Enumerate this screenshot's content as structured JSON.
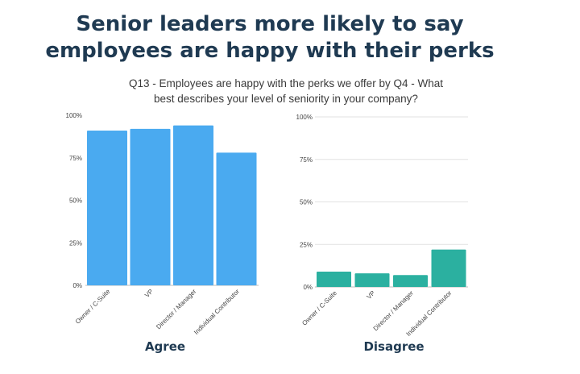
{
  "title_line1": "Senior leaders more likely to say",
  "title_line2": "employees are happy with their perks",
  "subtitle_line1": "Q13 - Employees are happy with the perks we offer by Q4 - What",
  "subtitle_line2": "best describes your level of seniority in your company?",
  "chart_data": [
    {
      "type": "bar",
      "title": "Agree",
      "categories": [
        "Owner / C-Suite",
        "VP",
        "Director / Manager",
        "Individual Contributor"
      ],
      "values": [
        91,
        92,
        94,
        78
      ],
      "ylim": [
        0,
        100
      ],
      "yticks": [
        "0%",
        "25%",
        "50%",
        "75%",
        "100%"
      ],
      "color": "#4aaaf0",
      "grid": false
    },
    {
      "type": "bar",
      "title": "Disagree",
      "categories": [
        "Owner / C-Suite",
        "VP",
        "Director / Manager",
        "Individual Contributor"
      ],
      "values": [
        9,
        8,
        7,
        22
      ],
      "ylim": [
        0,
        100
      ],
      "yticks": [
        "0%",
        "25%",
        "50%",
        "75%",
        "100%"
      ],
      "color": "#2bb0a0",
      "grid": true
    }
  ]
}
